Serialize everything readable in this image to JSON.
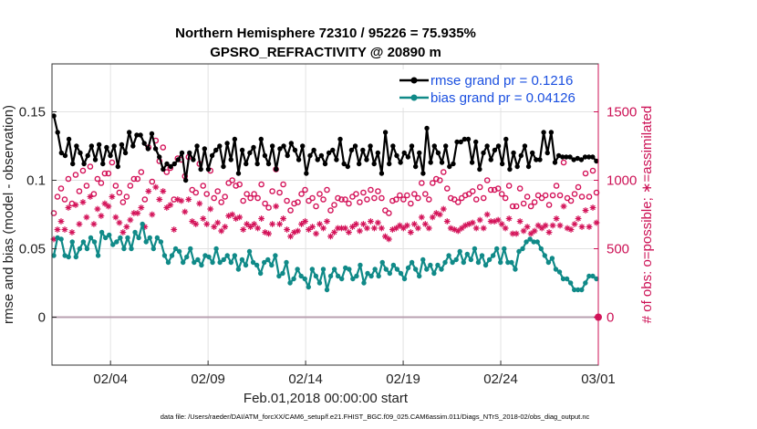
{
  "chart_data": {
    "type": "line",
    "title_line1": "Northern Hemisphere 72310 / 95226 = 75.935%",
    "title_line2": "GPSRO_REFRACTIVITY @ 20890 m",
    "xlabel": "Feb.01,2018 00:00:00 start",
    "ylabel": "rmse and bias (model - observation)",
    "ylabel_right": "# of obs: o=possible; ∗=assimilated",
    "footer": "data file: /Users/raeder/DAI/ATM_forcXX/CAM6_setup/f.e21.FHIST_BGC.f09_025.CAM6assim.011/Diags_NTrS_2018-02/obs_diag_output.nc",
    "x_ticks": [
      "02/04",
      "02/09",
      "02/14",
      "02/19",
      "02/24",
      "03/01"
    ],
    "x_tick_days": [
      3,
      8,
      13,
      18,
      23,
      28
    ],
    "xlim_days": [
      0,
      28
    ],
    "ylim": [
      -0.035,
      0.185
    ],
    "y_ticks": [
      "0",
      "0.05",
      "0.1",
      "0.15"
    ],
    "y_tick_values": [
      0,
      0.05,
      0.1,
      0.15
    ],
    "ylim_right": [
      -350,
      1850
    ],
    "y_ticks_right": [
      "0",
      "500",
      "1000",
      "1500"
    ],
    "y_tick_values_right": [
      0,
      500,
      1000,
      1500
    ],
    "grid": true,
    "legend_position": "top-right",
    "colors": {
      "rmse": "#000000",
      "bias": "#108a88",
      "obs": "#d4145a",
      "zero_line": "#b8a0b0"
    },
    "series": [
      {
        "name": "rmse grand pr = 0.1216",
        "axis": "left",
        "values": [
          0.147,
          0.135,
          0.12,
          0.118,
          0.13,
          0.112,
          0.125,
          0.12,
          0.112,
          0.118,
          0.125,
          0.115,
          0.126,
          0.112,
          0.124,
          0.118,
          0.125,
          0.11,
          0.126,
          0.12,
          0.135,
          0.125,
          0.133,
          0.133,
          0.127,
          0.123,
          0.134,
          0.123,
          0.117,
          0.108,
          0.112,
          0.11,
          0.112,
          0.115,
          0.12,
          0.1,
          0.12,
          0.115,
          0.125,
          0.108,
          0.123,
          0.108,
          0.118,
          0.122,
          0.125,
          0.11,
          0.127,
          0.115,
          0.13,
          0.105,
          0.122,
          0.112,
          0.12,
          0.124,
          0.112,
          0.13,
          0.118,
          0.112,
          0.125,
          0.108,
          0.123,
          0.125,
          0.118,
          0.127,
          0.122,
          0.115,
          0.125,
          0.105,
          0.118,
          0.122,
          0.115,
          0.118,
          0.112,
          0.12,
          0.122,
          0.115,
          0.13,
          0.112,
          0.11,
          0.122,
          0.125,
          0.112,
          0.122,
          0.115,
          0.125,
          0.112,
          0.12,
          0.105,
          0.135,
          0.112,
          0.125,
          0.118,
          0.113,
          0.12,
          0.117,
          0.125,
          0.11,
          0.12,
          0.105,
          0.138,
          0.113,
          0.125,
          0.12,
          0.113,
          0.125,
          0.11,
          0.112,
          0.128,
          0.128,
          0.13,
          0.13,
          0.113,
          0.128,
          0.108,
          0.12,
          0.125,
          0.115,
          0.122,
          0.125,
          0.112,
          0.13,
          0.108,
          0.12,
          0.11,
          0.118,
          0.125,
          0.11,
          0.12,
          0.115,
          0.115,
          0.135,
          0.12,
          0.135,
          0.113,
          0.118,
          0.117,
          0.117,
          0.117,
          0.115,
          0.116,
          0.115,
          0.117,
          0.117,
          0.117,
          0.114
        ],
        "marker": "filled-circle"
      },
      {
        "name": "bias grand pr = 0.04126",
        "axis": "left",
        "values": [
          0.045,
          0.058,
          0.057,
          0.045,
          0.044,
          0.055,
          0.044,
          0.05,
          0.055,
          0.05,
          0.058,
          0.055,
          0.045,
          0.062,
          0.058,
          0.06,
          0.053,
          0.055,
          0.058,
          0.05,
          0.058,
          0.05,
          0.062,
          0.058,
          0.068,
          0.055,
          0.058,
          0.05,
          0.058,
          0.055,
          0.045,
          0.04,
          0.045,
          0.05,
          0.048,
          0.04,
          0.044,
          0.05,
          0.04,
          0.042,
          0.038,
          0.045,
          0.044,
          0.04,
          0.05,
          0.04,
          0.042,
          0.045,
          0.04,
          0.045,
          0.035,
          0.042,
          0.038,
          0.048,
          0.04,
          0.038,
          0.032,
          0.04,
          0.042,
          0.038,
          0.045,
          0.03,
          0.032,
          0.04,
          0.025,
          0.028,
          0.035,
          0.03,
          0.028,
          0.022,
          0.035,
          0.03,
          0.025,
          0.035,
          0.02,
          0.03,
          0.035,
          0.03,
          0.028,
          0.036,
          0.035,
          0.028,
          0.03,
          0.038,
          0.025,
          0.032,
          0.03,
          0.035,
          0.03,
          0.04,
          0.035,
          0.032,
          0.038,
          0.035,
          0.032,
          0.028,
          0.036,
          0.04,
          0.035,
          0.03,
          0.042,
          0.035,
          0.038,
          0.032,
          0.038,
          0.035,
          0.04,
          0.045,
          0.04,
          0.042,
          0.048,
          0.04,
          0.046,
          0.042,
          0.05,
          0.04,
          0.045,
          0.038,
          0.042,
          0.045,
          0.05,
          0.04,
          0.05,
          0.04,
          0.04,
          0.035,
          0.048,
          0.05,
          0.055,
          0.057,
          0.055,
          0.055,
          0.05,
          0.045,
          0.04,
          0.043,
          0.035,
          0.033,
          0.028,
          0.028,
          0.025,
          0.02,
          0.02,
          0.02,
          0.025,
          0.03,
          0.03,
          0.028
        ],
        "marker": "filled-circle"
      },
      {
        "name": "possible",
        "axis": "right",
        "values": [
          760,
          880,
          940,
          860,
          1010,
          830,
          1040,
          920,
          1070,
          960,
          1100,
          900,
          1010,
          980,
          1050,
          1050,
          1130,
          960,
          910,
          840,
          880,
          960,
          1010,
          1010,
          1060,
          860,
          1240,
          990,
          1290,
          1140,
          1240,
          1060,
          1090,
          860,
          1160,
          1150,
          1030,
          1170,
          930,
          910,
          1120,
          960,
          900,
          1070,
          870,
          920,
          840,
          880,
          980,
          1000,
          960,
          970,
          850,
          900,
          870,
          900,
          870,
          970,
          830,
          800,
          920,
          1080,
          910,
          970,
          850,
          780,
          830,
          840,
          900,
          930,
          850,
          870,
          810,
          900,
          860,
          930,
          780,
          820,
          870,
          860,
          860,
          830,
          880,
          900,
          840,
          910,
          860,
          930,
          870,
          920,
          870,
          780,
          760,
          850,
          860,
          890,
          860,
          890,
          830,
          900,
          870,
          980,
          900,
          860,
          980,
          1010,
          1000,
          1060,
          940,
          870,
          860,
          840,
          870,
          890,
          900,
          920,
          860,
          950,
          870,
          1000,
          930,
          930,
          940,
          900,
          870,
          960,
          810,
          810,
          940,
          830,
          880,
          810,
          840,
          890,
          870,
          890,
          820,
          890,
          960,
          890,
          1130,
          870,
          850,
          900,
          950,
          880,
          1050,
          880,
          1070,
          910
        ]
      },
      {
        "name": "assimilated",
        "axis": "right",
        "values": [
          570,
          640,
          700,
          640,
          800,
          620,
          820,
          680,
          840,
          730,
          880,
          680,
          790,
          740,
          830,
          810,
          880,
          730,
          690,
          620,
          660,
          710,
          760,
          760,
          800,
          660,
          920,
          750,
          950,
          860,
          920,
          800,
          820,
          640,
          860,
          850,
          770,
          860,
          700,
          680,
          830,
          720,
          680,
          790,
          660,
          690,
          630,
          660,
          740,
          750,
          720,
          730,
          640,
          680,
          660,
          680,
          650,
          720,
          620,
          610,
          680,
          810,
          680,
          720,
          640,
          590,
          620,
          630,
          680,
          700,
          640,
          660,
          610,
          680,
          650,
          700,
          590,
          620,
          650,
          650,
          650,
          620,
          660,
          680,
          630,
          680,
          650,
          700,
          650,
          690,
          650,
          590,
          570,
          640,
          650,
          670,
          650,
          670,
          620,
          680,
          650,
          730,
          680,
          650,
          730,
          760,
          750,
          790,
          700,
          650,
          640,
          630,
          650,
          670,
          680,
          690,
          650,
          710,
          650,
          750,
          700,
          700,
          710,
          680,
          650,
          720,
          610,
          610,
          700,
          630,
          660,
          610,
          630,
          670,
          650,
          670,
          620,
          670,
          720,
          670,
          810,
          650,
          640,
          680,
          720,
          660,
          780,
          660,
          800,
          690
        ]
      }
    ]
  }
}
